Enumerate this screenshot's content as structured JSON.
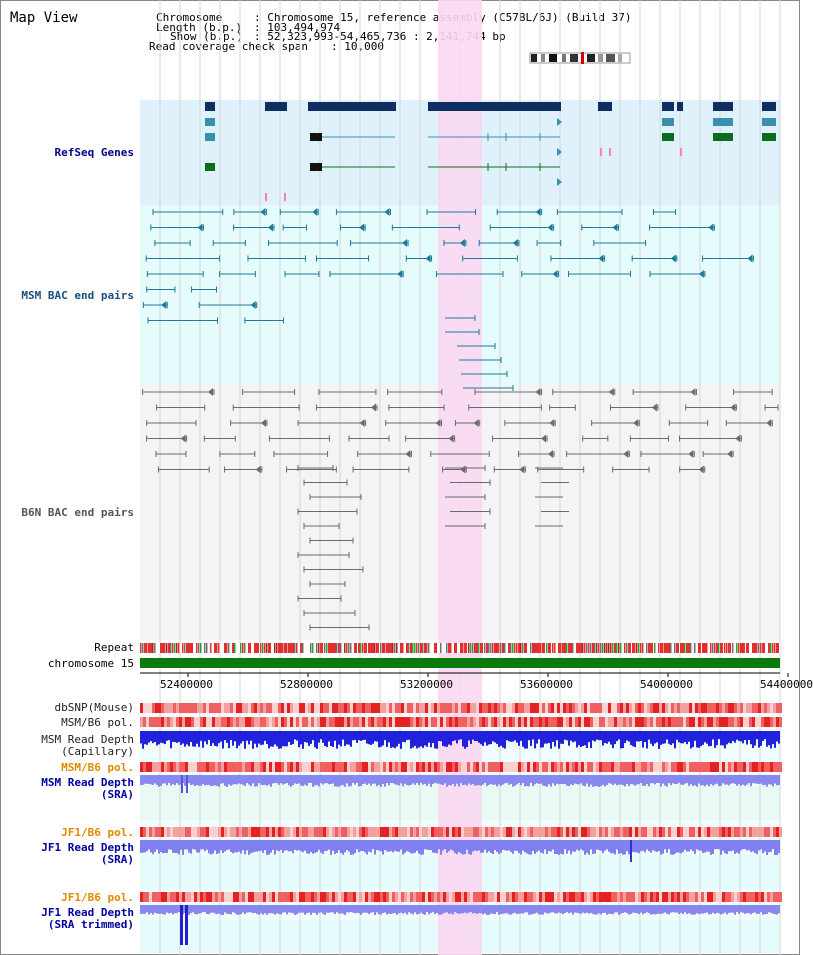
{
  "title": "Map View",
  "header": {
    "chromosome_key": "Chromosome",
    "chromosome_val": ": Chromosome 15, reference assembly (C57BL/6J) (Build 37)",
    "length_key": "Length (b.p.)",
    "length_val": ": 103,494,974",
    "show_key": "Show (b.p.)",
    "show_val": ": 52,323,993-54,465,736 : 2,141,744 bp",
    "coverage_key": "Read coverage check span",
    "coverage_val": ": 10,000"
  },
  "tracks": {
    "refseq": "RefSeq Genes",
    "msm_bac": "MSM BAC end pairs",
    "b6n_bac": "B6N BAC end pairs",
    "repeat": "Repeat",
    "chromosome": "chromosome 15",
    "dbsnp": "dbSNP(Mouse)",
    "msm_pol": "MSM/B6 pol.",
    "msm_depth_cap_1": "MSM Read Depth",
    "msm_depth_cap_2": "(Capillary)",
    "msm_pol2": "MSM/B6 pol.",
    "msm_depth_sra_1": "MSM Read Depth",
    "msm_depth_sra_2": "(SRA)",
    "jf1_pol": "JF1/B6 pol.",
    "jf1_depth_1": "JF1 Read Depth",
    "jf1_depth_2": "(SRA)",
    "jf1_pol2": "JF1/B6 pol.",
    "jf1_trim_1": "JF1 Read Depth",
    "jf1_trim_2": "(SRA trimmed)"
  },
  "axis": {
    "ticks": [
      "52400000",
      "52800000",
      "53200000",
      "53600000",
      "54000000",
      "54400000"
    ]
  },
  "colors": {
    "refseq_bg": "#dff1fb",
    "msm_bg": "#e6fbfb",
    "b6n_bg": "#f4f4f6",
    "highlight": "#f9d8f2",
    "gene_dark": "#0f2f63",
    "gene_teal": "#3a8fb0",
    "gene_green": "#0c6e1c",
    "bac_teal": "#1d7a9a",
    "bac_gray": "#6a6a6a",
    "chrom_green": "#0a7a0a",
    "depth_blue": "#2222dd",
    "depth_light": "#8888ee"
  }
}
